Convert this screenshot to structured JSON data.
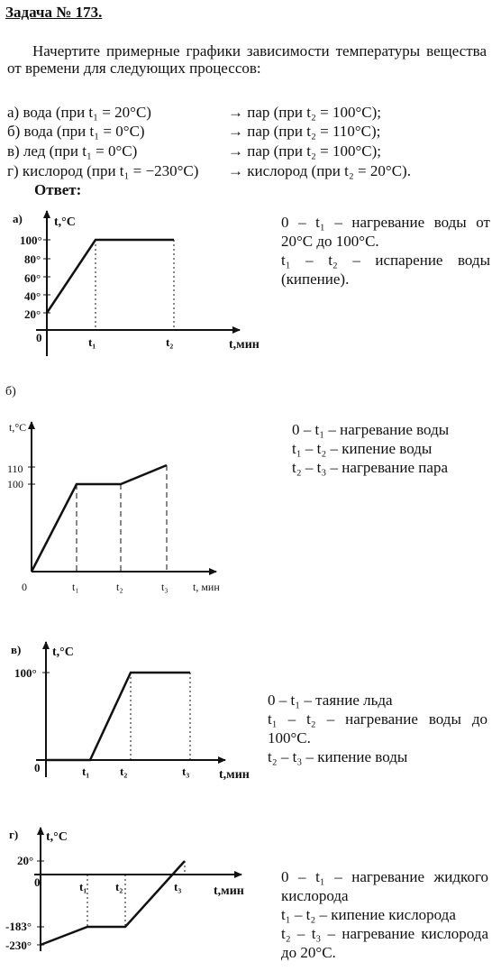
{
  "title": "Задача № 173.",
  "intro": "Начертите примерные графики зависимости температуры вещества от времени для следующих процессов:",
  "tasks": [
    {
      "left": "а) вода (при t₁ = 20°C)",
      "right": "→ пар (при t₂ = 100°C);"
    },
    {
      "left": "б) вода (при t₁ = 0°C)",
      "right": "→ пар (при t₂ = 110°C);"
    },
    {
      "left": "в) лед (при t₁ = 0°C)",
      "right": "→ пар (при t₂ = 100°C);"
    },
    {
      "left": "г) кислород (при t₁ = −230°C)",
      "right": "→ кислород (при t₂ = 20°C)."
    }
  ],
  "answer_label": "Ответ:",
  "graphs": {
    "a": {
      "label": "а)",
      "y_axis_label": "t,°C",
      "x_axis_label": "t,мин",
      "origin": "0",
      "y_ticks": [
        "100°",
        "80°",
        "60°",
        "40°",
        "20°"
      ],
      "x_ticks": [
        "t₁",
        "t₂"
      ],
      "desc": [
        "0 – t₁ – нагревание воды от 20°C до 100°C.",
        "t₁ – t₂ – испарение воды (кипение)."
      ]
    },
    "b": {
      "label": "б)",
      "y_axis_label": "t,°C",
      "x_axis_label": "t, мин",
      "origin": "0",
      "y_ticks": [
        "110",
        "100"
      ],
      "x_ticks": [
        "t₁",
        "t₂",
        "t₃"
      ],
      "desc": [
        "0 – t₁ – нагревание воды",
        "t₁ – t₂ – кипение воды",
        "t₂ – t₃ – нагревание пара"
      ]
    },
    "v": {
      "label": "в)",
      "y_axis_label": "t,°C",
      "x_axis_label": "t,мин",
      "origin": "0",
      "y_ticks": [
        "100°"
      ],
      "x_ticks": [
        "t₁",
        "t₂",
        "t₃"
      ],
      "desc": [
        "0 – t₁ – таяние льда",
        "t₁ – t₂ – нагревание воды до 100°C.",
        "t₂ – t₃ – кипение воды"
      ]
    },
    "g": {
      "label": "г)",
      "y_axis_label": "t,°C",
      "x_axis_label": "t,мин",
      "origin": "0",
      "y_ticks": [
        "20°",
        "-183°",
        "-230°"
      ],
      "x_ticks": [
        "t₁",
        "t₂",
        "t₃"
      ],
      "desc": [
        "0 – t₁ – нагревание жидкого кислорода",
        "t₁ – t₂ – кипение кислорода",
        "t₂ – t₃ – нагревание кислорода до 20°C."
      ]
    }
  }
}
